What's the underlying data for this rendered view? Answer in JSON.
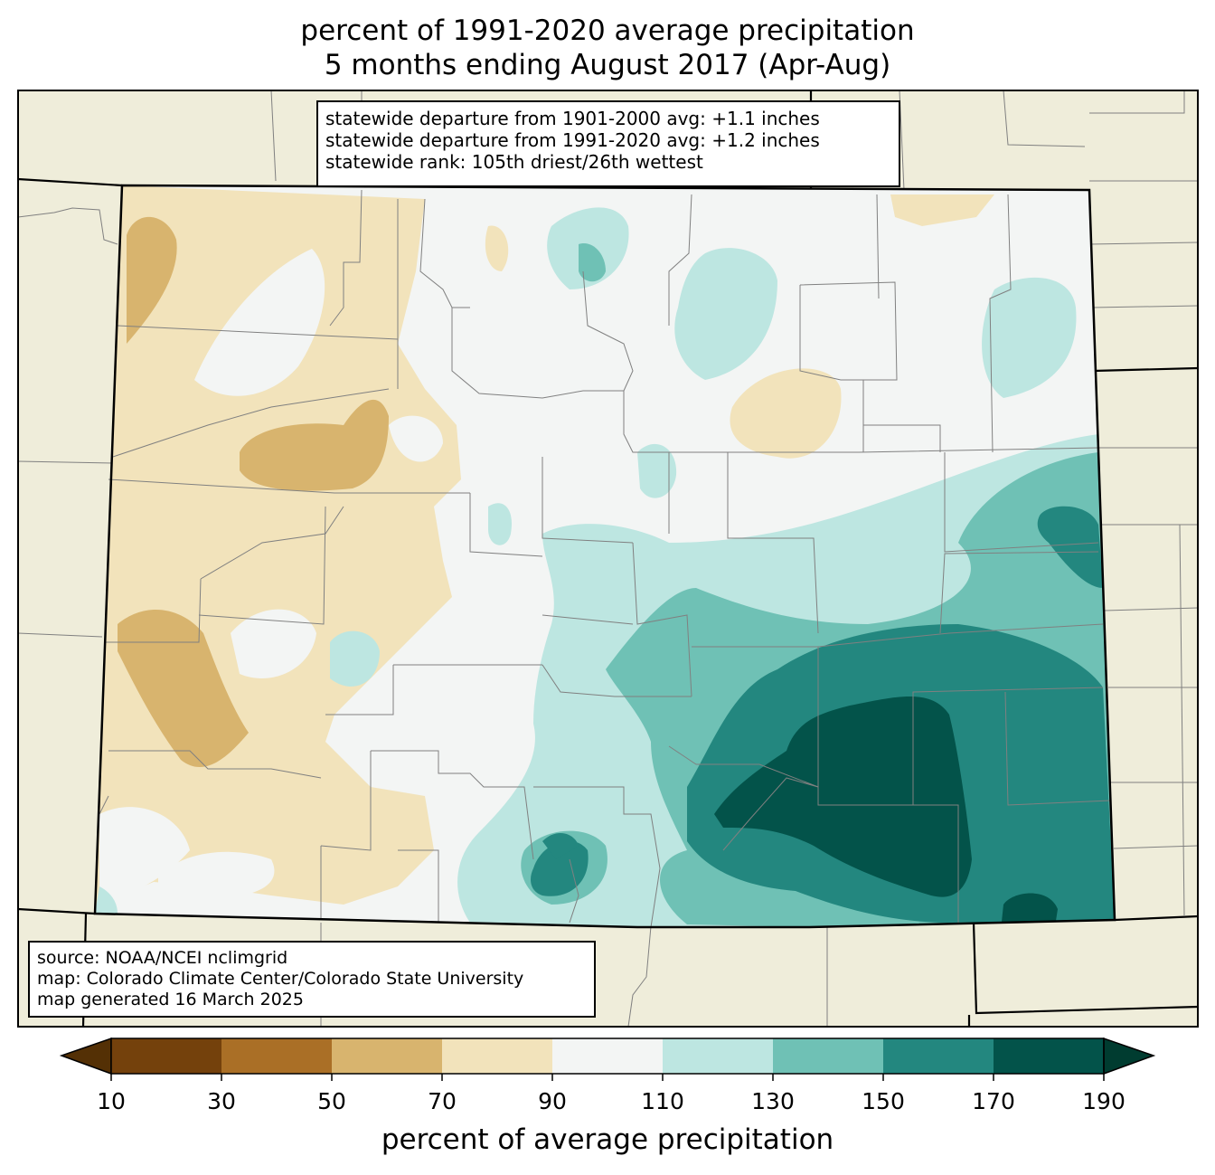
{
  "title": {
    "line1": "percent of 1991-2020 average precipitation",
    "line2": "5 months ending August 2017 (Apr-Aug)"
  },
  "stats": {
    "line1": "statewide departure from 1901-2000 avg: +1.1 inches",
    "line2": "statewide departure from 1991-2020 avg: +1.2 inches",
    "line3": "statewide rank: 105th driest/26th wettest"
  },
  "source": {
    "line1": "source: NOAA/NCEI nclimgrid",
    "line2": "map: Colorado Climate Center/Colorado State University",
    "line3": "map generated 16 March 2025"
  },
  "colorbar": {
    "label": "percent of average precipitation",
    "ticks": [
      "10",
      "30",
      "50",
      "70",
      "90",
      "110",
      "130",
      "150",
      "170",
      "190"
    ],
    "under_color": "#543005",
    "over_color": "#003c30",
    "colors": [
      "#74410c",
      "#aa6f26",
      "#d8b46e",
      "#f2e3bb",
      "#f3f5f4",
      "#bde6e1",
      "#6fc1b5",
      "#23877f",
      "#03534a"
    ]
  },
  "map_colors": {
    "ocean_land_background": "#efedda",
    "state_border": "#000000",
    "county_border": "#808080"
  }
}
